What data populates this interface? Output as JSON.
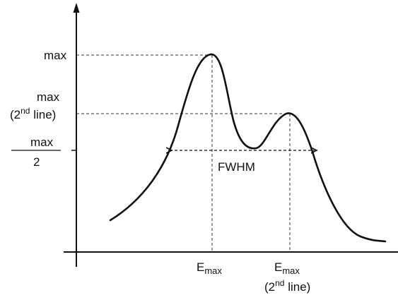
{
  "diagram": {
    "y_labels": {
      "max": "max",
      "max2_top": "max",
      "max2_prefix": "(2",
      "max2_sup": "nd",
      "max2_suffix": " line)",
      "half_num": "max",
      "half_den": "2"
    },
    "x_labels": {
      "emax_e": "E",
      "emax_sub": "max",
      "emax2_e": "E",
      "emax2_sub": "max",
      "emax2_prefix": "(2",
      "emax2_sup": "nd",
      "emax2_suffix": " line)"
    },
    "annotations": {
      "fwhm": "FWHM"
    },
    "colors": {
      "ink": "#111111",
      "guide": "#333333",
      "background": "#ffffff"
    }
  }
}
